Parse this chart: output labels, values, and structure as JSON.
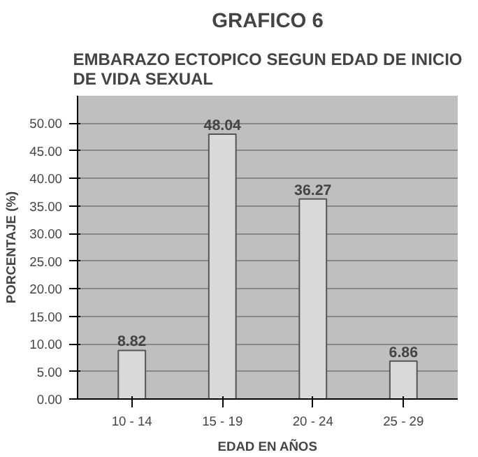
{
  "chart_data": {
    "type": "bar",
    "title": "GRAFICO 6",
    "subtitle": "EMBARAZO ECTOPICO SEGUN EDAD DE INICIO DE VIDA SEXUAL",
    "xlabel": "EDAD EN AÑOS",
    "ylabel": "PORCENTAJE (%)",
    "categories": [
      "10 - 14",
      "15 - 19",
      "20 - 24",
      "25 - 29"
    ],
    "values": [
      8.82,
      48.04,
      36.27,
      6.86
    ],
    "color": "#d9d9d9",
    "data_labels": true,
    "ylim": [
      0,
      50
    ],
    "yticks": [
      {
        "value": 0,
        "label": "0.00"
      },
      {
        "value": 5,
        "label": "5.00"
      },
      {
        "value": 10,
        "label": "10.00"
      },
      {
        "value": 15,
        "label": "15.00"
      },
      {
        "value": 20,
        "label": "20.00"
      },
      {
        "value": 25,
        "label": "25.00"
      },
      {
        "value": 30,
        "label": "30.00"
      },
      {
        "value": 35,
        "label": "35.00"
      },
      {
        "value": 40,
        "label": "40.00"
      },
      {
        "value": 45,
        "label": "45.00"
      },
      {
        "value": 50,
        "label": "50.00"
      }
    ],
    "grid": "y"
  }
}
